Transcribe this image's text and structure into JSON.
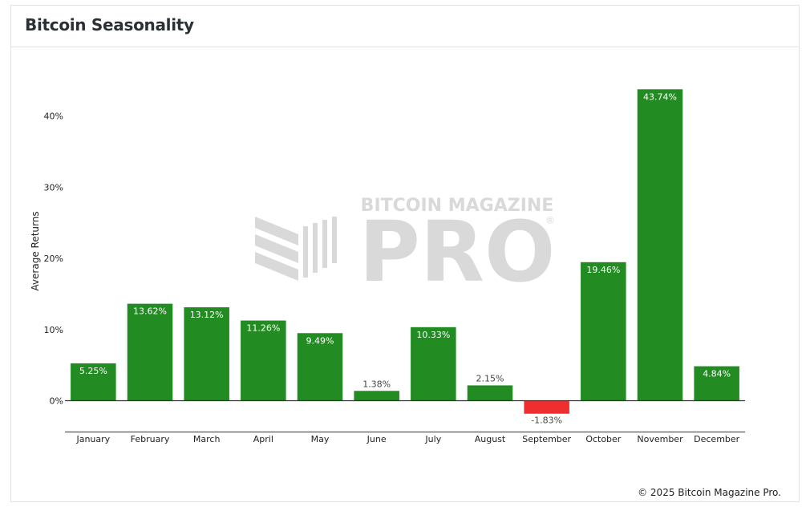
{
  "card": {
    "title": "Bitcoin Seasonality",
    "footer": "© 2025 Bitcoin Magazine Pro."
  },
  "watermark": {
    "top_text": "BITCOIN MAGAZINE",
    "big_text": "PRO",
    "mark": "®"
  },
  "colors": {
    "positive": "#228b22",
    "negative": "#ef2f2f",
    "watermark": "#d9d9d9",
    "axis": "#333333"
  },
  "chart_data": {
    "type": "bar",
    "ylabel": "Average Returns",
    "categories": [
      "January",
      "February",
      "March",
      "April",
      "May",
      "June",
      "July",
      "August",
      "September",
      "October",
      "November",
      "December"
    ],
    "values": [
      5.25,
      13.62,
      13.12,
      11.26,
      9.49,
      1.38,
      10.33,
      2.15,
      -1.83,
      19.46,
      43.74,
      4.84
    ],
    "value_labels": [
      "5.25%",
      "13.62%",
      "13.12%",
      "11.26%",
      "9.49%",
      "1.38%",
      "10.33%",
      "2.15%",
      "-1.83%",
      "19.46%",
      "43.74%",
      "4.84%"
    ],
    "y_ticks": [
      0,
      10,
      20,
      30,
      40
    ],
    "y_tick_labels": [
      "0%",
      "10%",
      "20%",
      "30%",
      "40%"
    ],
    "ylim": [
      -4,
      44
    ],
    "grid": false,
    "legend": "none"
  }
}
